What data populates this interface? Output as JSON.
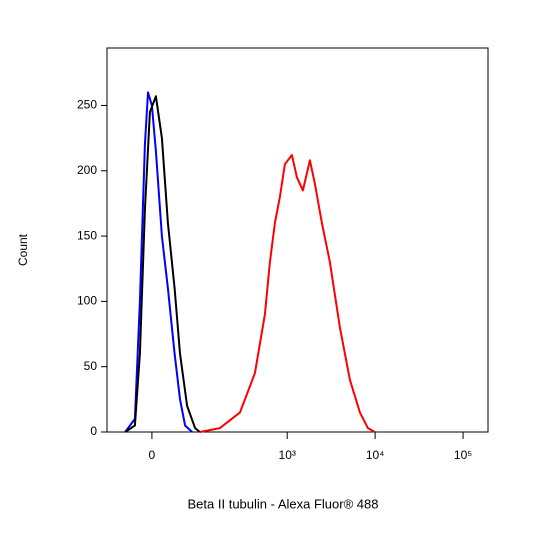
{
  "chart_data": {
    "type": "line",
    "xlabel": "Beta II tubulin - Alexa Fluor® 488",
    "ylabel": "Count",
    "xscale": "asinh",
    "xscale_width": 58,
    "xlim": [
      -85,
      192000
    ],
    "xticks": [
      0,
      {
        "value": 1000,
        "label": "10³"
      },
      {
        "value": 10000,
        "label": "10⁴"
      },
      {
        "value": 100000,
        "label": "10⁵"
      }
    ],
    "ylim": [
      0,
      294
    ],
    "yticks": [
      0,
      50,
      100,
      150,
      200,
      250
    ],
    "series": [
      {
        "color": "#0000ff",
        "x": [
          -44,
          -26.7,
          -18.5,
          -10.7,
          -6,
          0,
          6,
          15.4,
          25,
          36.6,
          46.6,
          56.9,
          73
        ],
        "values": [
          0,
          10,
          100,
          220,
          260,
          250,
          215,
          150,
          110,
          60,
          25,
          5,
          0
        ]
      },
      {
        "color": "#000000",
        "x": [
          -44,
          -26.7,
          -18.5,
          -10.7,
          -3,
          6,
          15.4,
          25,
          36.6,
          46.6,
          61.3,
          80.4,
          93.5
        ],
        "values": [
          0,
          5,
          60,
          170,
          245,
          257,
          225,
          160,
          110,
          60,
          20,
          3,
          0
        ]
      },
      {
        "color": "#ff0000",
        "x": [
          93.5,
          167,
          288,
          428,
          557,
          636,
          725,
          827,
          943,
          1131,
          1290,
          1508,
          1813,
          2067,
          2482,
          3062,
          3978,
          5169,
          6716,
          8282,
          9941
        ],
        "values": [
          0,
          3,
          15,
          45,
          90,
          130,
          160,
          180,
          205,
          212,
          195,
          185,
          208,
          190,
          160,
          130,
          80,
          40,
          15,
          3,
          0
        ]
      }
    ]
  }
}
